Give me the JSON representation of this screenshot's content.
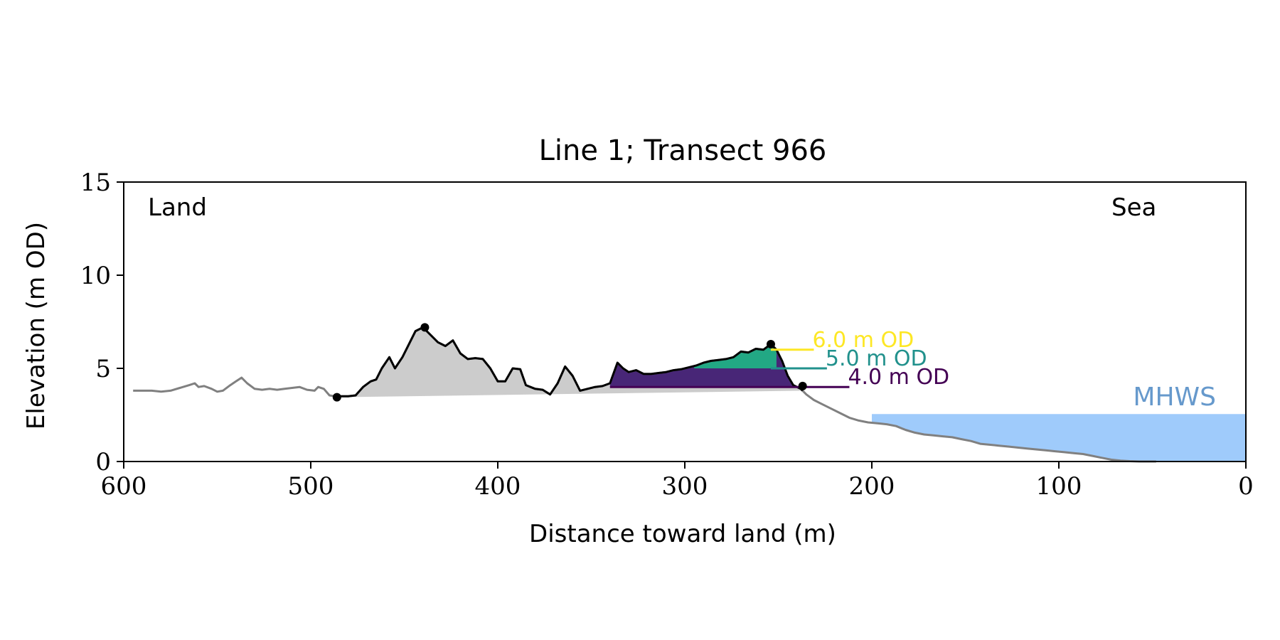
{
  "chart_data": {
    "type": "area",
    "title": "Line 1; Transect 966",
    "xlabel": "Distance toward land (m)",
    "ylabel": "Elevation (m OD)",
    "xlim": [
      600,
      0
    ],
    "ylim": [
      0,
      15
    ],
    "x_reversed": true,
    "xticks": [
      600,
      500,
      400,
      300,
      200,
      100,
      0
    ],
    "yticks": [
      0,
      5,
      10,
      15
    ],
    "grid": false,
    "corner_labels": {
      "left": "Land",
      "right": "Sea"
    },
    "profile": {
      "x": [
        595,
        590,
        585,
        580,
        575,
        570,
        565,
        562,
        560,
        557,
        553,
        550,
        547,
        543,
        540,
        537,
        534,
        530,
        526,
        522,
        518,
        514,
        510,
        506,
        502,
        498,
        496,
        493,
        490,
        487,
        484,
        480,
        476,
        472,
        468,
        465,
        462,
        458,
        455,
        451,
        448,
        444,
        440,
        436,
        432,
        428,
        424,
        420,
        416,
        412,
        408,
        404,
        400,
        396,
        392,
        388,
        385,
        380,
        376,
        372,
        368,
        364,
        360,
        356,
        352,
        348,
        344,
        340,
        336,
        333,
        330,
        326,
        322,
        318,
        314,
        310,
        306,
        302,
        298,
        294,
        290,
        286,
        282,
        278,
        274,
        270,
        266,
        262,
        258,
        254,
        251,
        248,
        245,
        242,
        238,
        235,
        231,
        227,
        222,
        217,
        212,
        207,
        202,
        197,
        192,
        187,
        182,
        177,
        172,
        167,
        162,
        157,
        152,
        147,
        142,
        137,
        132,
        127,
        122,
        117,
        112,
        107,
        102,
        97,
        92,
        87,
        82,
        77,
        72,
        67,
        62,
        57,
        52,
        48
      ],
      "y": [
        3.8,
        3.8,
        3.8,
        3.75,
        3.8,
        3.95,
        4.1,
        4.2,
        4.0,
        4.05,
        3.9,
        3.75,
        3.8,
        4.1,
        4.3,
        4.5,
        4.2,
        3.9,
        3.85,
        3.9,
        3.85,
        3.9,
        3.95,
        4.0,
        3.85,
        3.8,
        4.0,
        3.9,
        3.55,
        3.5,
        3.5,
        3.5,
        3.55,
        4.0,
        4.3,
        4.4,
        5.0,
        5.6,
        5.0,
        5.6,
        6.2,
        7.0,
        7.2,
        6.8,
        6.4,
        6.2,
        6.5,
        5.8,
        5.5,
        5.55,
        5.5,
        5.0,
        4.3,
        4.3,
        5.0,
        4.95,
        4.1,
        3.9,
        3.85,
        3.6,
        4.2,
        5.1,
        4.6,
        3.8,
        3.9,
        4.0,
        4.05,
        4.2,
        5.3,
        5.0,
        4.8,
        4.9,
        4.7,
        4.7,
        4.75,
        4.8,
        4.9,
        4.95,
        5.05,
        5.15,
        5.3,
        5.4,
        5.45,
        5.5,
        5.6,
        5.9,
        5.85,
        6.05,
        6.0,
        6.3,
        6.0,
        5.4,
        4.6,
        4.1,
        3.9,
        3.6,
        3.3,
        3.1,
        2.85,
        2.6,
        2.35,
        2.2,
        2.1,
        2.05,
        2.0,
        1.9,
        1.7,
        1.55,
        1.45,
        1.4,
        1.35,
        1.3,
        1.2,
        1.1,
        0.95,
        0.9,
        0.85,
        0.8,
        0.75,
        0.7,
        0.65,
        0.6,
        0.55,
        0.5,
        0.45,
        0.4,
        0.3,
        0.2,
        0.1,
        0.05,
        0.02,
        0.0,
        0.0,
        0.0
      ],
      "color": "#808080"
    },
    "dune": {
      "color": "#000000",
      "fill": "#cccccc",
      "toe": {
        "x": 486,
        "y": 3.45
      },
      "crest_max": {
        "x": 439,
        "y": 7.2
      },
      "crest_seaward": {
        "x": 254,
        "y": 6.3
      },
      "heel": {
        "x": 237,
        "y": 4.05
      }
    },
    "od_levels": [
      {
        "label": "6.0 m OD",
        "value": 6.0,
        "color": "#fde725",
        "line_x": [
          254,
          231
        ],
        "label_x": 231,
        "label_y": 6.0
      },
      {
        "label": "5.0 m OD",
        "value": 5.0,
        "color": "#21918c",
        "line_x": [
          254,
          224
        ],
        "label_x": 224,
        "label_y": 5.0
      },
      {
        "label": "4.0 m OD",
        "value": 4.0,
        "color": "#440154",
        "line_x": [
          340,
          212
        ],
        "label_x": 212,
        "label_y": 4.0
      }
    ],
    "volumes": [
      {
        "level": 4.0,
        "x_range": [
          340,
          237
        ],
        "fill": "#482677"
      },
      {
        "level": 5.0,
        "x_range": [
          295,
          251
        ],
        "fill": "#22a884"
      }
    ],
    "mhws": {
      "label": "MHWS",
      "value": 2.55,
      "x_range": [
        200,
        0
      ],
      "fill": "#9fcbfb",
      "text_color": "#6699cc"
    }
  }
}
